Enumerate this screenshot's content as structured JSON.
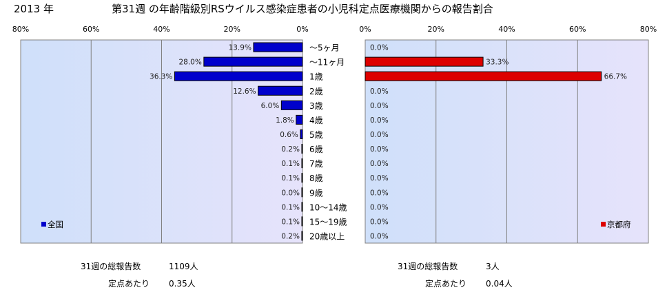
{
  "header": {
    "year": "2013 年",
    "title": "第31週 の年齢階級別RSウイルス感染症患者の小児科定点医療機関からの報告割合"
  },
  "chart_data": [
    {
      "type": "bar",
      "orientation": "horizontal",
      "direction": "leftward",
      "legend": "全国",
      "legend_position": "bottom-left",
      "color": "#0000cc",
      "xlim": [
        0,
        80
      ],
      "ticks": [
        "80%",
        "60%",
        "40%",
        "20%",
        "0%"
      ],
      "categories": [
        "～5ヶ月",
        "～11ヶ月",
        "1歳",
        "2歳",
        "3歳",
        "4歳",
        "5歳",
        "6歳",
        "7歳",
        "8歳",
        "9歳",
        "10～14歳",
        "15～19歳",
        "20歳以上"
      ],
      "values": [
        13.9,
        28.0,
        36.3,
        12.6,
        6.0,
        1.8,
        0.6,
        0.2,
        0.1,
        0.1,
        0.0,
        0.1,
        0.1,
        0.2
      ],
      "labels": [
        "13.9%",
        "28.0%",
        "36.3%",
        "12.6%",
        "6.0%",
        "1.8%",
        "0.6%",
        "0.2%",
        "0.1%",
        "0.1%",
        "0.0%",
        "0.1%",
        "0.1%",
        "0.2%"
      ],
      "grid": true
    },
    {
      "type": "bar",
      "orientation": "horizontal",
      "direction": "rightward",
      "legend": "京都府",
      "legend_position": "bottom-right",
      "color": "#dd0000",
      "xlim": [
        0,
        80
      ],
      "ticks": [
        "0%",
        "20%",
        "40%",
        "60%",
        "80%"
      ],
      "values": [
        0.0,
        33.3,
        66.7,
        0.0,
        0.0,
        0.0,
        0.0,
        0.0,
        0.0,
        0.0,
        0.0,
        0.0,
        0.0,
        0.0
      ],
      "labels": [
        "0.0%",
        "33.3%",
        "66.7%",
        "0.0%",
        "0.0%",
        "0.0%",
        "0.0%",
        "0.0%",
        "0.0%",
        "0.0%",
        "0.0%",
        "0.0%",
        "0.0%",
        "0.0%"
      ],
      "grid": true
    }
  ],
  "footer": {
    "national": {
      "reports_label": "31週の総報告数",
      "reports_value": "1109人",
      "per_site_label": "定点あたり",
      "per_site_value": "0.35人"
    },
    "kyoto": {
      "reports_label": "31週の総報告数",
      "reports_value": "3人",
      "per_site_label": "定点あたり",
      "per_site_value": "0.04人"
    }
  }
}
